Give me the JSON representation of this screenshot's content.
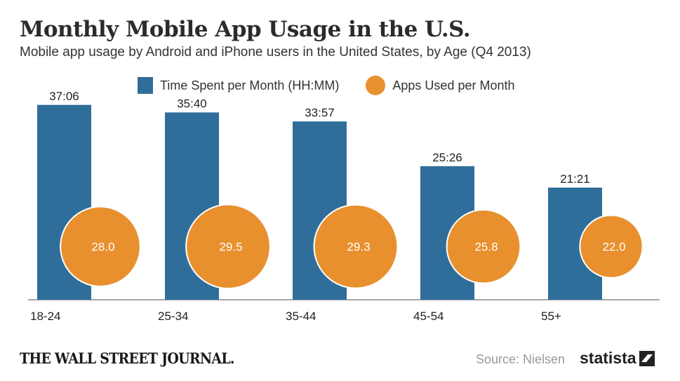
{
  "header": {
    "title": "Monthly Mobile App Usage in the U.S.",
    "subtitle": "Mobile app usage by Android and iPhone users in the United States, by Age (Q4 2013)"
  },
  "legend": {
    "series1": "Time Spent per Month (HH:MM)",
    "series2": "Apps Used per Month"
  },
  "footer": {
    "publisher": "THE WALL STREET JOURNAL.",
    "source": "Source: Nielsen",
    "brand": "statista"
  },
  "colors": {
    "bar": "#2f6e9b",
    "circle": "#e8902e",
    "axis": "#888888"
  },
  "chart_data": {
    "type": "bar",
    "title": "Monthly Mobile App Usage in the U.S.",
    "categories": [
      "18-24",
      "25-34",
      "35-44",
      "45-54",
      "55+"
    ],
    "series": [
      {
        "name": "Time Spent per Month (HH:MM)",
        "labels": [
          "37:06",
          "35:40",
          "33:57",
          "25:26",
          "21:21"
        ],
        "values": [
          37.1,
          35.667,
          33.95,
          25.433,
          21.35
        ]
      },
      {
        "name": "Apps Used per Month",
        "values": [
          28.0,
          29.5,
          29.3,
          25.8,
          22.0
        ],
        "labels": [
          "28.0",
          "29.5",
          "29.3",
          "25.8",
          "22.0"
        ]
      }
    ],
    "xlabel": "",
    "ylabel": "",
    "ylim": [
      0,
      40
    ]
  }
}
